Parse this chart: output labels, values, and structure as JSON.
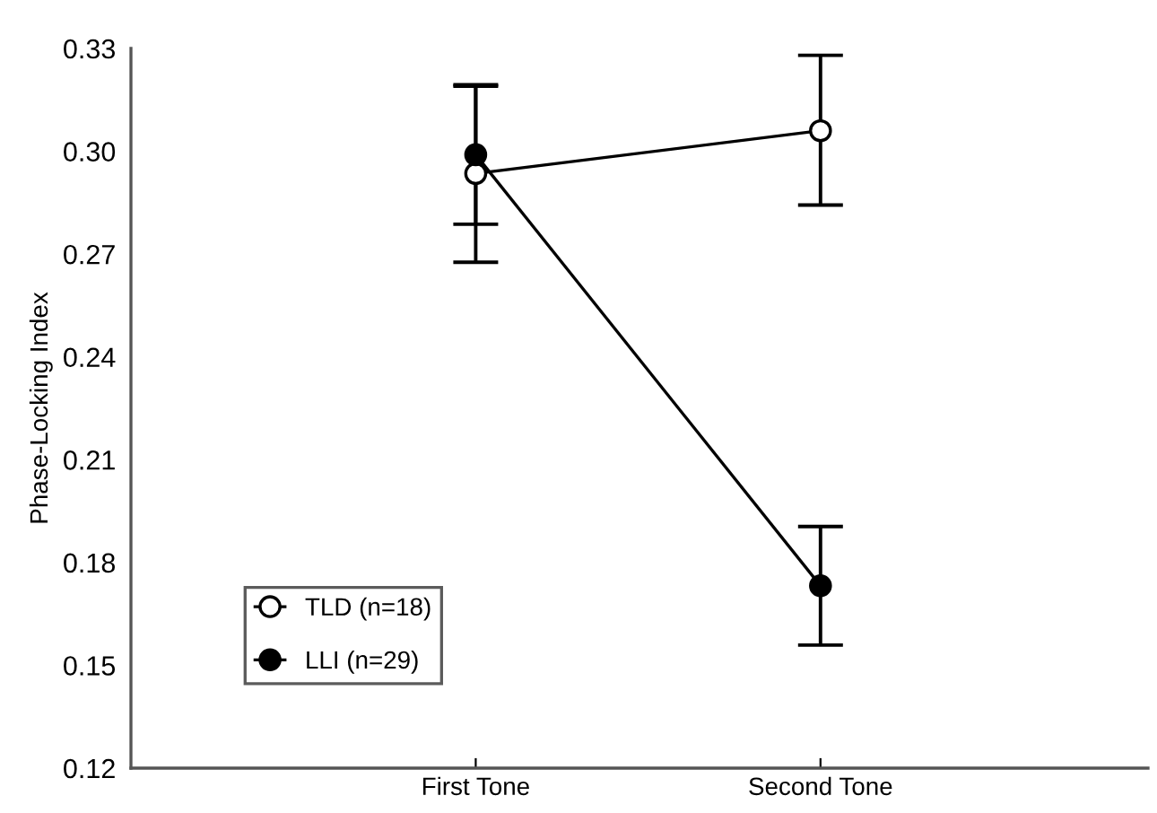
{
  "chart_data": {
    "type": "line",
    "ylabel": "Phase-Locking Index",
    "categories": [
      "First Tone",
      "Second Tone"
    ],
    "series": [
      {
        "name": "TLD (n=18)",
        "color": "#000000",
        "values": [
          0.2935,
          0.306
        ],
        "errors": [
          [
            0.2676,
            0.319
          ],
          [
            0.2843,
            0.328
          ]
        ]
      },
      {
        "name": "LLI (n=29)",
        "color": "#000000",
        "values": [
          0.299,
          0.1732
        ],
        "errors": [
          [
            0.2787,
            0.3194
          ],
          [
            0.1559,
            0.1905
          ]
        ]
      }
    ],
    "ylim": [
      0.12,
      0.33
    ],
    "yticks": [
      0.12,
      0.15,
      0.18,
      0.21,
      0.24,
      0.27,
      {
        "value": 0.3,
        "label": "0.30"
      },
      0.33
    ],
    "grid": false,
    "legend": "bottom left",
    "marker": "circle",
    "line_style": "solid"
  }
}
